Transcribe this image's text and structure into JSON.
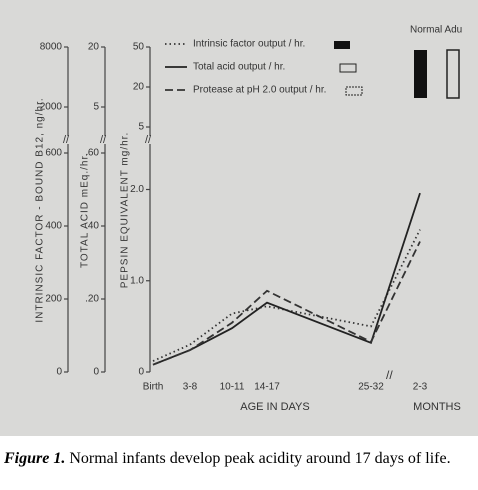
{
  "figure": {
    "chart_data": {
      "type": "line",
      "categories": [
        "Birth",
        "3-8",
        "10-11",
        "14-17",
        "25-32",
        "2-3"
      ],
      "xlabel": "AGE IN DAYS",
      "xlabel2": "MONTHS",
      "annotation": "Normal Adu",
      "axes": [
        {
          "label": "INTRINSIC FACTOR - BOUND B12, ng/hr.",
          "ylim": [
            0,
            600
          ],
          "yticks": [
            0,
            200,
            400,
            600
          ],
          "upper_ticks": [
            2000,
            8000
          ]
        },
        {
          "label": "TOTAL ACID mEq./hr.",
          "ylim": [
            0,
            0.6
          ],
          "yticks": [
            0,
            {
              "value": 0.2,
              "label": ".20"
            },
            {
              "value": 0.4,
              "label": ".40"
            },
            {
              "value": 0.6,
              "label": ".60"
            }
          ],
          "upper_ticks": [
            5,
            20
          ]
        },
        {
          "label": "PEPSIN EQUIVALENT mg/hr.",
          "ylim": [
            0,
            2.4
          ],
          "yticks": [
            0,
            {
              "value": 1,
              "label": "1.0"
            },
            {
              "value": 2,
              "label": "2.0"
            }
          ],
          "upper_ticks": [
            5,
            20,
            50
          ]
        }
      ],
      "series": [
        {
          "name": "Intrinsic factor output / hr.",
          "axis": 0,
          "style": "dotted",
          "color": "#333333",
          "values": [
            30,
            75,
            160,
            180,
            125,
            390
          ]
        },
        {
          "name": "Total acid output / hr.",
          "axis": 1,
          "style": "solid",
          "color": "#222222",
          "values": [
            0.02,
            0.06,
            0.12,
            0.19,
            0.08,
            0.49
          ]
        },
        {
          "name": "Protease at pH 2.0 output / hr.",
          "axis": 2,
          "style": "dashed",
          "color": "#333333",
          "values": [
            0.08,
            0.24,
            0.54,
            0.89,
            0.33,
            1.43
          ]
        }
      ]
    },
    "caption": {
      "label": "Figure 1.",
      "text": " Normal infants develop peak acidity around 17 days of life."
    }
  }
}
